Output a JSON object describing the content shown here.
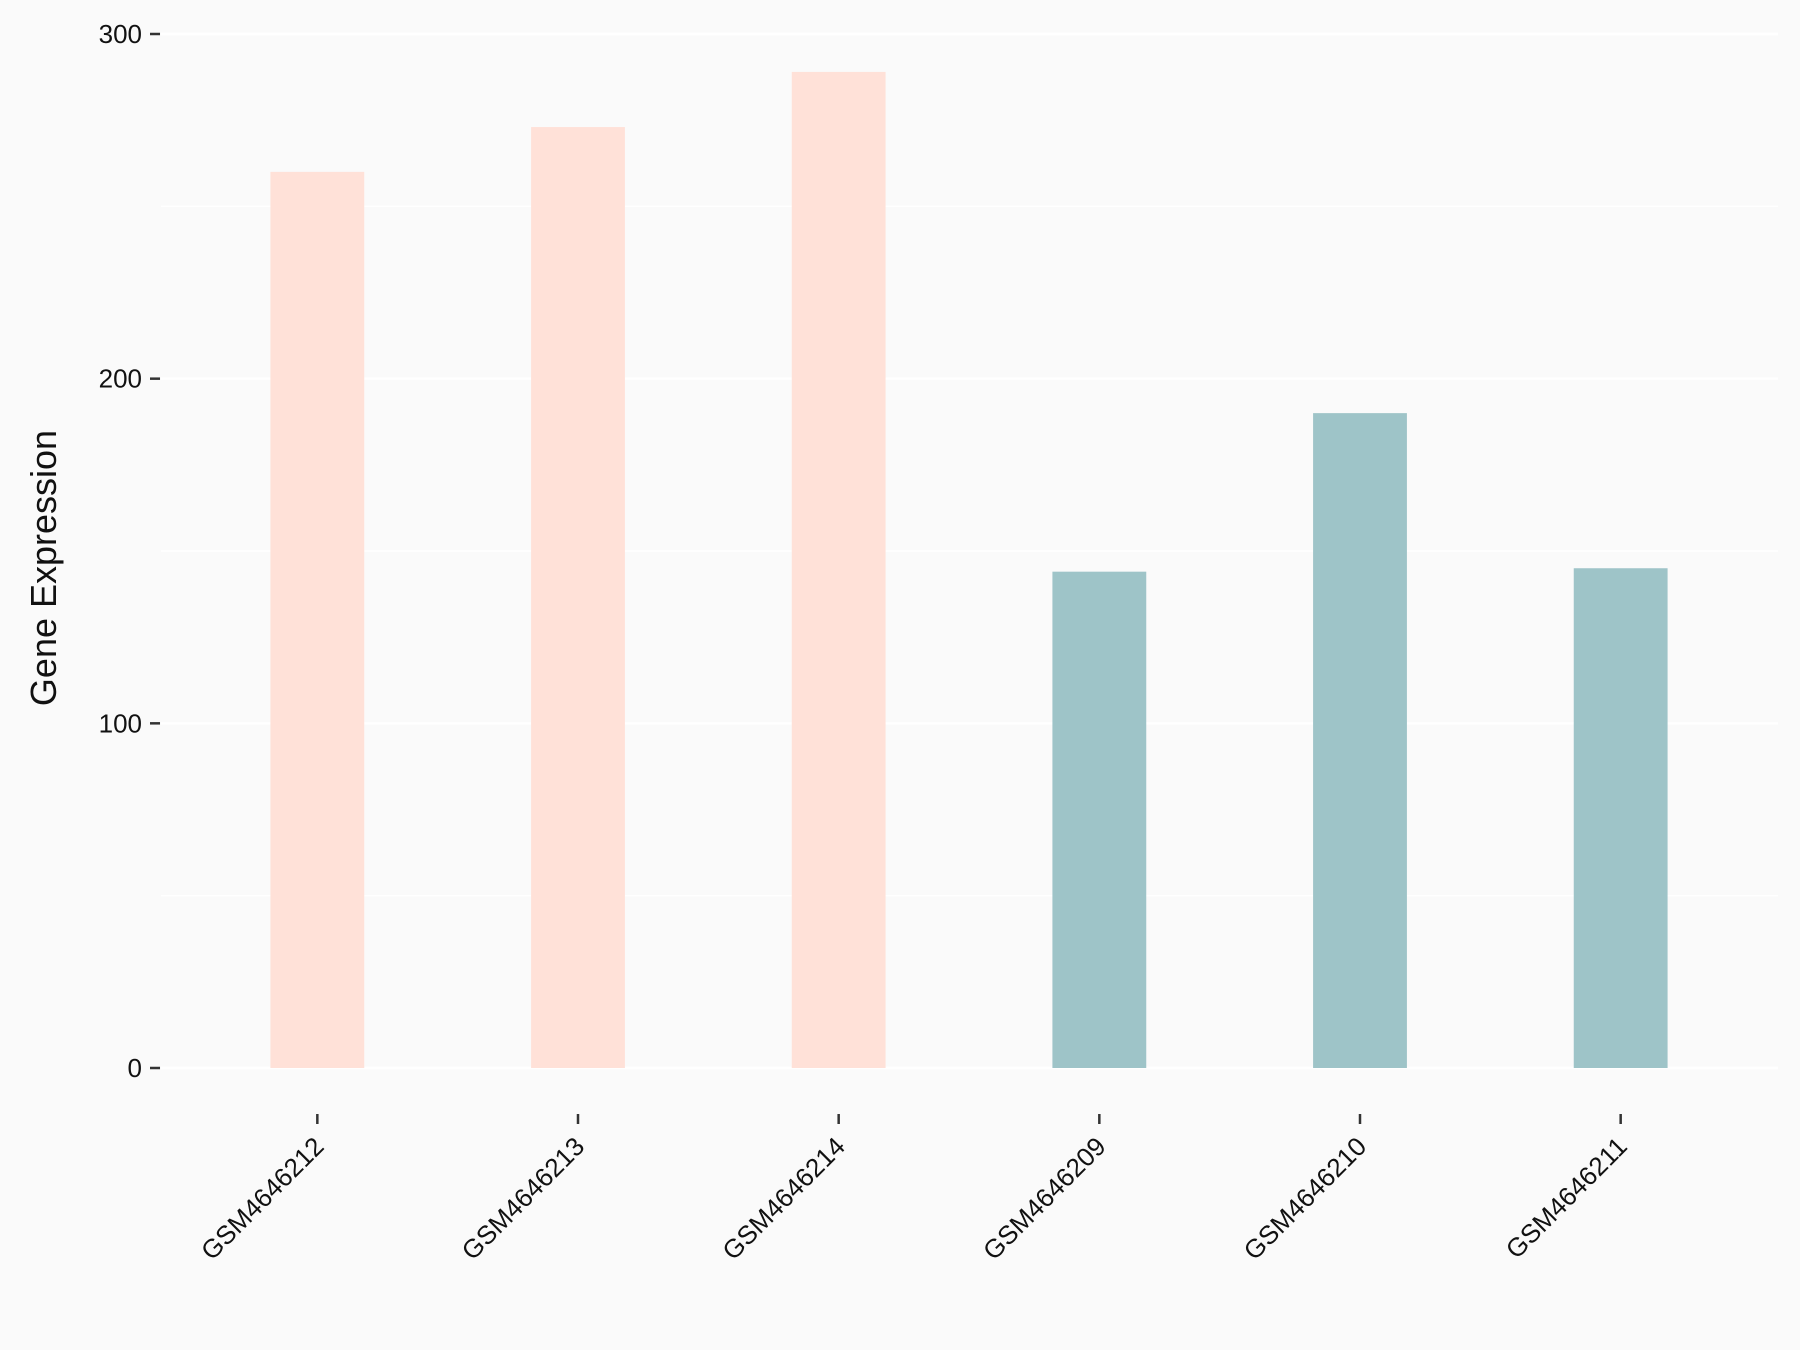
{
  "chart_data": {
    "type": "bar",
    "y_label": "Gene Expression",
    "categories": [
      "GSM4646212",
      "GSM4646213",
      "GSM4646214",
      "GSM4646209",
      "GSM4646210",
      "GSM4646211"
    ],
    "values": [
      260,
      273,
      289,
      144,
      190,
      145
    ],
    "colors": [
      "#FFE1D8",
      "#FFE1D8",
      "#FFE1D8",
      "#9EC4C8",
      "#9EC4C8",
      "#9EC4C8"
    ],
    "ylim": [
      0,
      300
    ],
    "yticks": [
      0,
      100,
      200,
      300
    ],
    "minor_yticks": [
      50,
      150,
      250
    ],
    "grid": true
  }
}
